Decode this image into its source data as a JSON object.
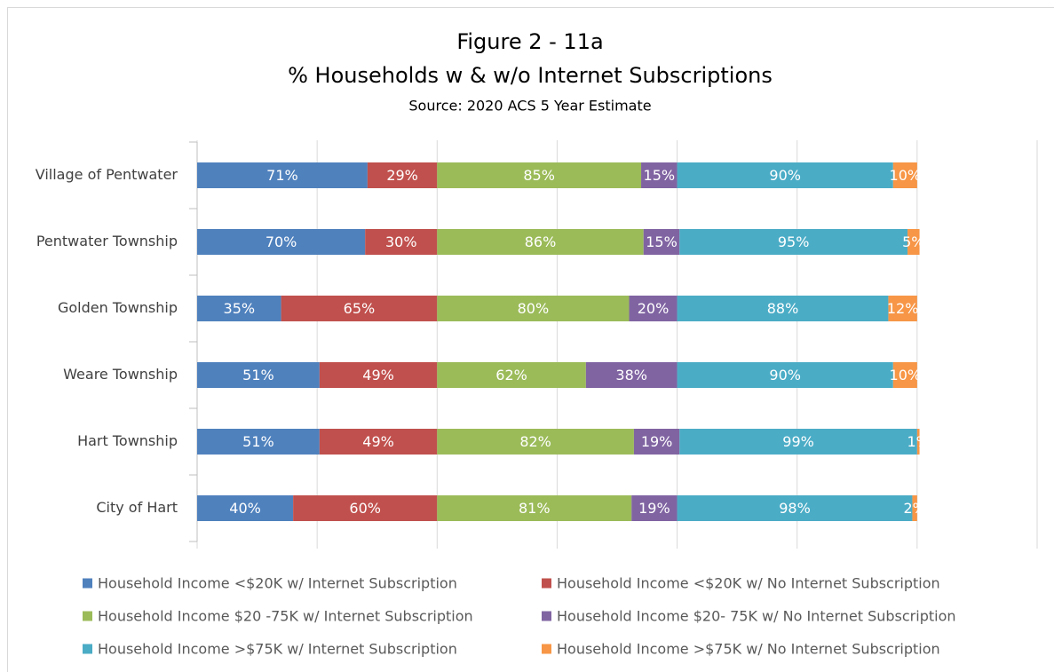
{
  "chart_data": {
    "type": "stacked-bar-horizontal",
    "title": "Figure 2 - 11a",
    "subtitle": "% Households w & w/o Internet Subscriptions",
    "source": "Source: 2020 ACS 5 Year Estimate",
    "categories": [
      "Village of Pentwater",
      "Pentwater Township",
      "Golden Township",
      "Weare Township",
      "Hart Township",
      "City of Hart"
    ],
    "series": [
      {
        "name": "Household Income <$20K w/  Internet Subscription",
        "color": "#4f81bd",
        "values": [
          71,
          70,
          35,
          51,
          51,
          40
        ],
        "value_labels": [
          "71%",
          "70%",
          "35%",
          "51%",
          "51%",
          "40%"
        ]
      },
      {
        "name": "Household Income <$20K w/ No Internet Subscription",
        "color": "#c0504d",
        "values": [
          29,
          30,
          65,
          49,
          49,
          60
        ],
        "value_labels": [
          "29%",
          "30%",
          "65%",
          "49%",
          "49%",
          "60%"
        ]
      },
      {
        "name": "Household Income $20 -75K w/  Internet Subscription",
        "color": "#9bbb59",
        "values": [
          85,
          86,
          80,
          62,
          82,
          81
        ],
        "value_labels": [
          "85%",
          "86%",
          "80%",
          "62%",
          "82%",
          "81%"
        ]
      },
      {
        "name": "Household Income $20- 75K w/ No Internet Subscription",
        "color": "#8064a2",
        "values": [
          15,
          15,
          20,
          38,
          19,
          19
        ],
        "value_labels": [
          "15%",
          "15%",
          "20%",
          "38%",
          "19%",
          "19%"
        ]
      },
      {
        "name": "Household Income >$75K w/  Internet Subscription",
        "color": "#4bacc6",
        "values": [
          90,
          95,
          88,
          90,
          99,
          98
        ],
        "value_labels": [
          "90%",
          "95%",
          "88%",
          "90%",
          "99%",
          "98%"
        ]
      },
      {
        "name": "Household Income >$75K w/ No Internet Subscription",
        "color": "#f79646",
        "values": [
          10,
          5,
          12,
          10,
          1,
          2
        ],
        "value_labels": [
          "10%",
          "5%",
          "12%",
          "10%",
          "1%",
          "2%"
        ]
      }
    ],
    "xlim": [
      0,
      350
    ],
    "xticks": [
      0,
      50,
      100,
      150,
      200,
      250,
      300,
      350
    ],
    "grid": true
  }
}
